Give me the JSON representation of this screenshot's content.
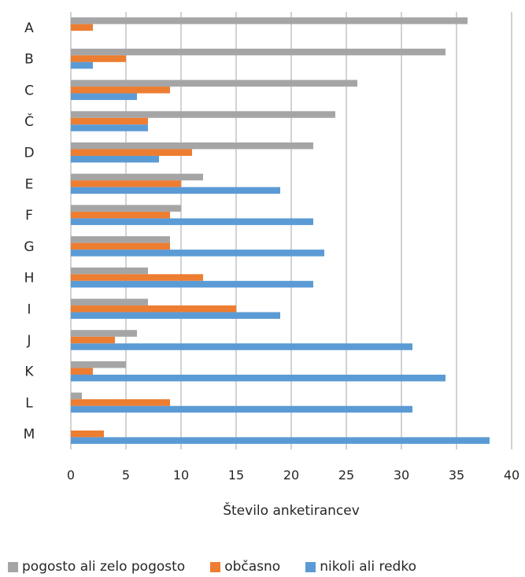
{
  "chart_data": {
    "type": "bar",
    "orientation": "horizontal",
    "categories": [
      "A",
      "B",
      "C",
      "Č",
      "D",
      "E",
      "F",
      "G",
      "H",
      "I",
      "J",
      "K",
      "L",
      "M"
    ],
    "series": [
      {
        "name": "pogosto ali zelo pogosto",
        "color": "#a5a5a5",
        "values": [
          36,
          34,
          26,
          24,
          22,
          12,
          10,
          9,
          7,
          7,
          6,
          5,
          1,
          0
        ]
      },
      {
        "name": "občasno",
        "color": "#ed7d31",
        "values": [
          2,
          5,
          9,
          7,
          11,
          10,
          9,
          9,
          12,
          15,
          4,
          2,
          9,
          3
        ]
      },
      {
        "name": "nikoli ali redko",
        "color": "#5b9bd5",
        "values": [
          0,
          2,
          6,
          7,
          8,
          19,
          22,
          23,
          22,
          19,
          31,
          34,
          31,
          38
        ]
      }
    ],
    "xlabel": "Število anketirancev",
    "ylabel": "",
    "xlim": [
      0,
      40
    ],
    "xticks": [
      0,
      5,
      10,
      15,
      20,
      25,
      30,
      35,
      40
    ],
    "grid": "vertical",
    "legend": "bottom"
  }
}
